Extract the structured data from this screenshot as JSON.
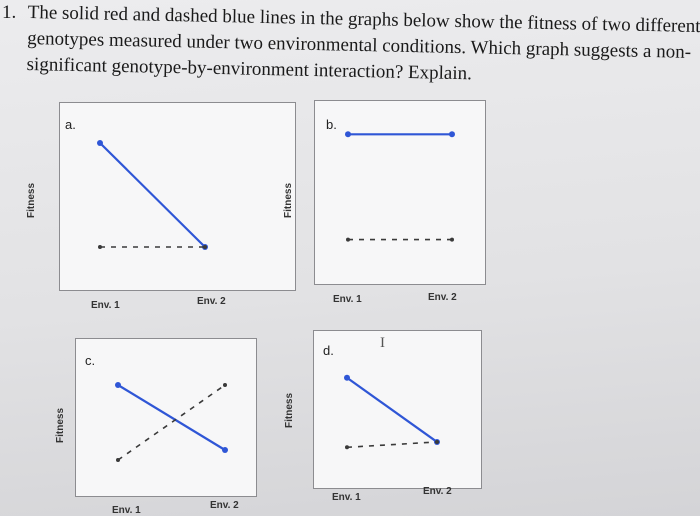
{
  "question": {
    "number": "1.",
    "lines": [
      "The solid red and dashed blue lines in the graphs below show the fitness of two different",
      "genotypes measured under two environmental conditions. Which graph suggests a non-",
      "significant genotype-by-environment interaction? Explain."
    ]
  },
  "colors": {
    "solid_line": "#2f56d6",
    "dashed_line": "#3a3a3a"
  },
  "cursor_glyph": "I",
  "chart_data": [
    {
      "type": "line",
      "panel": "a.",
      "ylabel": "Fitness",
      "categories": [
        "Env. 1",
        "Env. 2"
      ],
      "series": [
        {
          "style": "solid",
          "values": [
            0.9,
            0.1
          ]
        },
        {
          "style": "dashed",
          "values": [
            0.1,
            0.1
          ]
        }
      ]
    },
    {
      "type": "line",
      "panel": "b.",
      "ylabel": "Fitness",
      "categories": [
        "Env. 1",
        "Env. 2"
      ],
      "series": [
        {
          "style": "solid",
          "values": [
            0.85,
            0.85
          ]
        },
        {
          "style": "dashed",
          "values": [
            0.2,
            0.2
          ]
        }
      ]
    },
    {
      "type": "line",
      "panel": "c.",
      "ylabel": "Fitness",
      "categories": [
        "Env. 1",
        "Env. 2"
      ],
      "series": [
        {
          "style": "solid",
          "values": [
            0.8,
            0.15
          ]
        },
        {
          "style": "dashed",
          "values": [
            0.05,
            0.8
          ]
        }
      ]
    },
    {
      "type": "line",
      "panel": "d.",
      "ylabel": "Fitness",
      "categories": [
        "Env. 1",
        "Env. 2"
      ],
      "series": [
        {
          "style": "solid",
          "values": [
            0.75,
            0.15
          ]
        },
        {
          "style": "dashed",
          "values": [
            0.1,
            0.15
          ]
        }
      ]
    }
  ]
}
